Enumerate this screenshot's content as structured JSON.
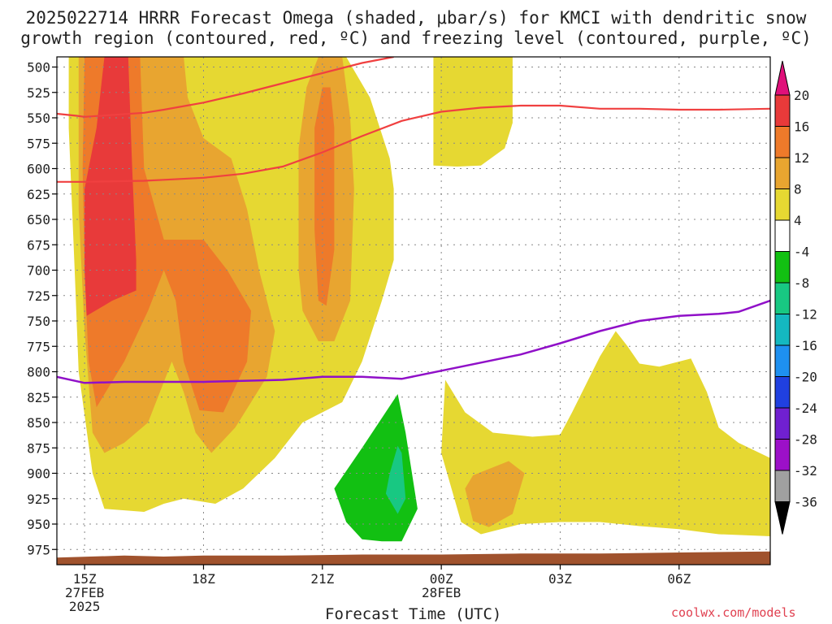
{
  "chart_data": {
    "type": "time-height cross-section",
    "title_line1": "2025022714 HRRR Forecast Omega (shaded, μbar/s) for KMCI with dendritic snow",
    "title_line2": "growth region (contoured, red, ºC) and freezing level (contoured, purple, ºC)",
    "xlabel": "Forecast Time (UTC)",
    "y_axis": {
      "quantity": "pressure (mb)",
      "range": [
        490,
        990
      ],
      "inverted": true,
      "ticks": [
        "500",
        "525",
        "550",
        "575",
        "600",
        "625",
        "650",
        "675",
        "700",
        "725",
        "750",
        "775",
        "800",
        "825",
        "850",
        "875",
        "900",
        "925",
        "950",
        "975"
      ]
    },
    "x_axis": {
      "range_hours": [
        14.3,
        32.3
      ],
      "ticks": [
        {
          "hour": 15,
          "lines": [
            "15Z",
            "27FEB",
            "2025"
          ]
        },
        {
          "hour": 18,
          "lines": [
            "18Z"
          ]
        },
        {
          "hour": 21,
          "lines": [
            "21Z"
          ]
        },
        {
          "hour": 24,
          "lines": [
            "00Z",
            "28FEB"
          ]
        },
        {
          "hour": 27,
          "lines": [
            "03Z"
          ]
        },
        {
          "hour": 30,
          "lines": [
            "06Z"
          ]
        }
      ]
    },
    "colorbar": {
      "labels": [
        "20",
        "16",
        "12",
        "8",
        "4",
        "-4",
        "-8",
        "-12",
        "-16",
        "-20",
        "-24",
        "-28",
        "-32",
        "-36"
      ],
      "colors": [
        "#e83a3a",
        "#ee7a2a",
        "#e8a530",
        "#e6d832",
        "#ffffff",
        "#12c012",
        "#18c882",
        "#14b8c0",
        "#1e90f0",
        "#2040e0",
        "#7020d0",
        "#9c10c8",
        "#a0a0a0"
      ],
      "top_arrow_color": "#e0107a",
      "bottom_arrow_color": "#000000"
    },
    "dgz_contours_red": [
      {
        "name": "dgz-top",
        "points": [
          [
            14.3,
            546
          ],
          [
            14.8,
            548
          ],
          [
            15.0,
            549
          ],
          [
            16.5,
            545
          ],
          [
            17.0,
            542
          ],
          [
            18.0,
            535
          ],
          [
            19.0,
            526
          ],
          [
            20.0,
            516
          ],
          [
            21.0,
            506
          ],
          [
            22.0,
            496
          ],
          [
            22.8,
            490
          ]
        ]
      },
      {
        "name": "dgz-bottom",
        "points": [
          [
            14.3,
            613
          ],
          [
            15.0,
            613
          ],
          [
            16.5,
            612
          ],
          [
            17.0,
            611
          ],
          [
            18.0,
            609
          ],
          [
            19.0,
            605
          ],
          [
            20.0,
            598
          ],
          [
            21.0,
            584
          ],
          [
            22.0,
            568
          ],
          [
            23.0,
            553
          ],
          [
            24.0,
            544
          ],
          [
            25.0,
            540
          ],
          [
            26.0,
            538
          ],
          [
            27.0,
            538
          ],
          [
            28.0,
            541
          ],
          [
            29.0,
            541
          ],
          [
            30.0,
            542
          ],
          [
            31.0,
            542
          ],
          [
            32.3,
            541
          ]
        ]
      }
    ],
    "freezing_level_purple": [
      [
        14.3,
        805
      ],
      [
        15.0,
        811
      ],
      [
        16.0,
        810
      ],
      [
        18.0,
        810
      ],
      [
        20.0,
        808
      ],
      [
        21.0,
        805
      ],
      [
        22.0,
        805
      ],
      [
        23.0,
        807
      ],
      [
        24.0,
        799
      ],
      [
        25.0,
        791
      ],
      [
        26.0,
        783
      ],
      [
        27.0,
        772
      ],
      [
        28.0,
        760
      ],
      [
        29.0,
        750
      ],
      [
        30.0,
        745
      ],
      [
        31.0,
        743
      ],
      [
        31.5,
        741
      ],
      [
        32.3,
        730
      ]
    ],
    "terrain_color": "#a0522d",
    "credit": "coolwx.com/models"
  }
}
